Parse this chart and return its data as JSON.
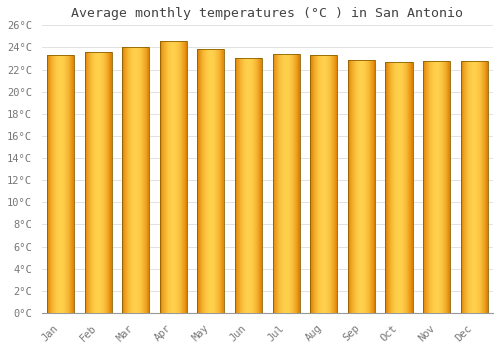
{
  "title": "Average monthly temperatures (°C ) in San Antonio",
  "months": [
    "Jan",
    "Feb",
    "Mar",
    "Apr",
    "May",
    "Jun",
    "Jul",
    "Aug",
    "Sep",
    "Oct",
    "Nov",
    "Dec"
  ],
  "values": [
    23.3,
    23.6,
    24.0,
    24.6,
    23.9,
    23.0,
    23.4,
    23.3,
    22.9,
    22.7,
    22.8,
    22.8
  ],
  "ylim": [
    0,
    26
  ],
  "yticks": [
    0,
    2,
    4,
    6,
    8,
    10,
    12,
    14,
    16,
    18,
    20,
    22,
    24,
    26
  ],
  "bar_color_center": "#FFD04C",
  "bar_color_edge": "#E08000",
  "bar_outline": "#8B6000",
  "background_color": "#FFFFFF",
  "plot_bg_color": "#FFFFFF",
  "grid_color": "#DDDDDD",
  "text_color": "#777777",
  "title_color": "#444444",
  "title_fontsize": 9.5,
  "tick_fontsize": 7.5,
  "bar_width": 0.72
}
